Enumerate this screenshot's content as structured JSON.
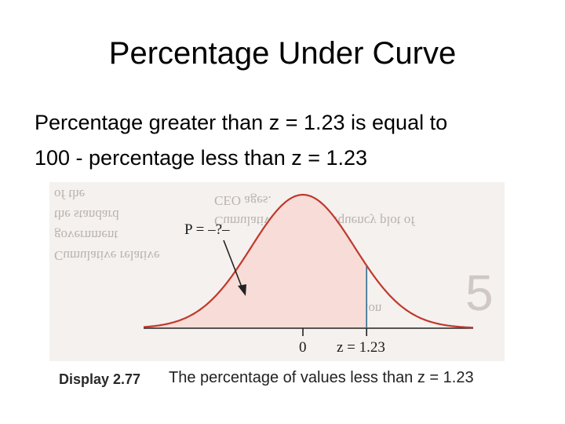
{
  "slide": {
    "title": "Percentage Under Curve",
    "body_lines": [
      "Percentage greater than z = 1.23 is equal to",
      "100 - percentage less than z = 1.23"
    ]
  },
  "figure": {
    "p_label": "P = –?–",
    "zero_label": "0",
    "z_label": "z = 1.23",
    "caption_label": "Display 2.77",
    "caption_text": "The percentage of values less than z = 1.23",
    "colors": {
      "curve": "#c0392b",
      "shaded_fill": "#f7dcd8",
      "marker_line": "#2e6f8e",
      "axis": "#222222"
    }
  }
}
